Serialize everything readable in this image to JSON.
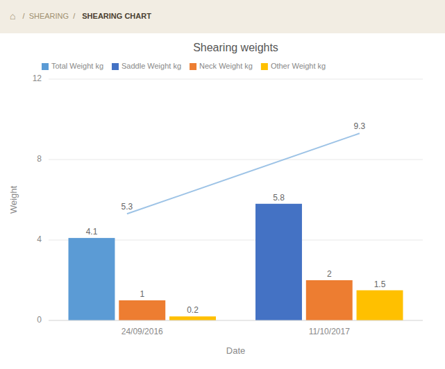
{
  "breadcrumb": [
    "⌂",
    "/  SHEARING  /",
    "SHEARING CHART"
  ],
  "chart_data": {
    "type": "bar",
    "title": "Shearing weights",
    "x_label": "Date",
    "y_label": "Weight",
    "categories": [
      "24/09/2016",
      "11/10/2017"
    ],
    "series": [
      {
        "name": "Total Weight kg",
        "type": "bar",
        "color": "#5B9BD5",
        "values": [
          4.1,
          null
        ]
      },
      {
        "name": "Saddle Weight kg",
        "type": "bar",
        "color": "#4472C4",
        "values": [
          null,
          5.8
        ]
      },
      {
        "name": "Neck Weight kg",
        "type": "bar",
        "color": "#ED7D31",
        "values": [
          1.0,
          2.0
        ]
      },
      {
        "name": "Other Weight kg",
        "type": "bar",
        "color": "#FFC000",
        "values": [
          0.2,
          1.5
        ]
      },
      {
        "type": "line",
        "color": "#9DC3E6",
        "values": [
          5.3,
          9.3
        ]
      }
    ],
    "ylim": [
      0,
      12
    ],
    "yticks": [
      0,
      4,
      8,
      12
    ],
    "grid": true,
    "legend": "upper left",
    "data_labels": true
  }
}
